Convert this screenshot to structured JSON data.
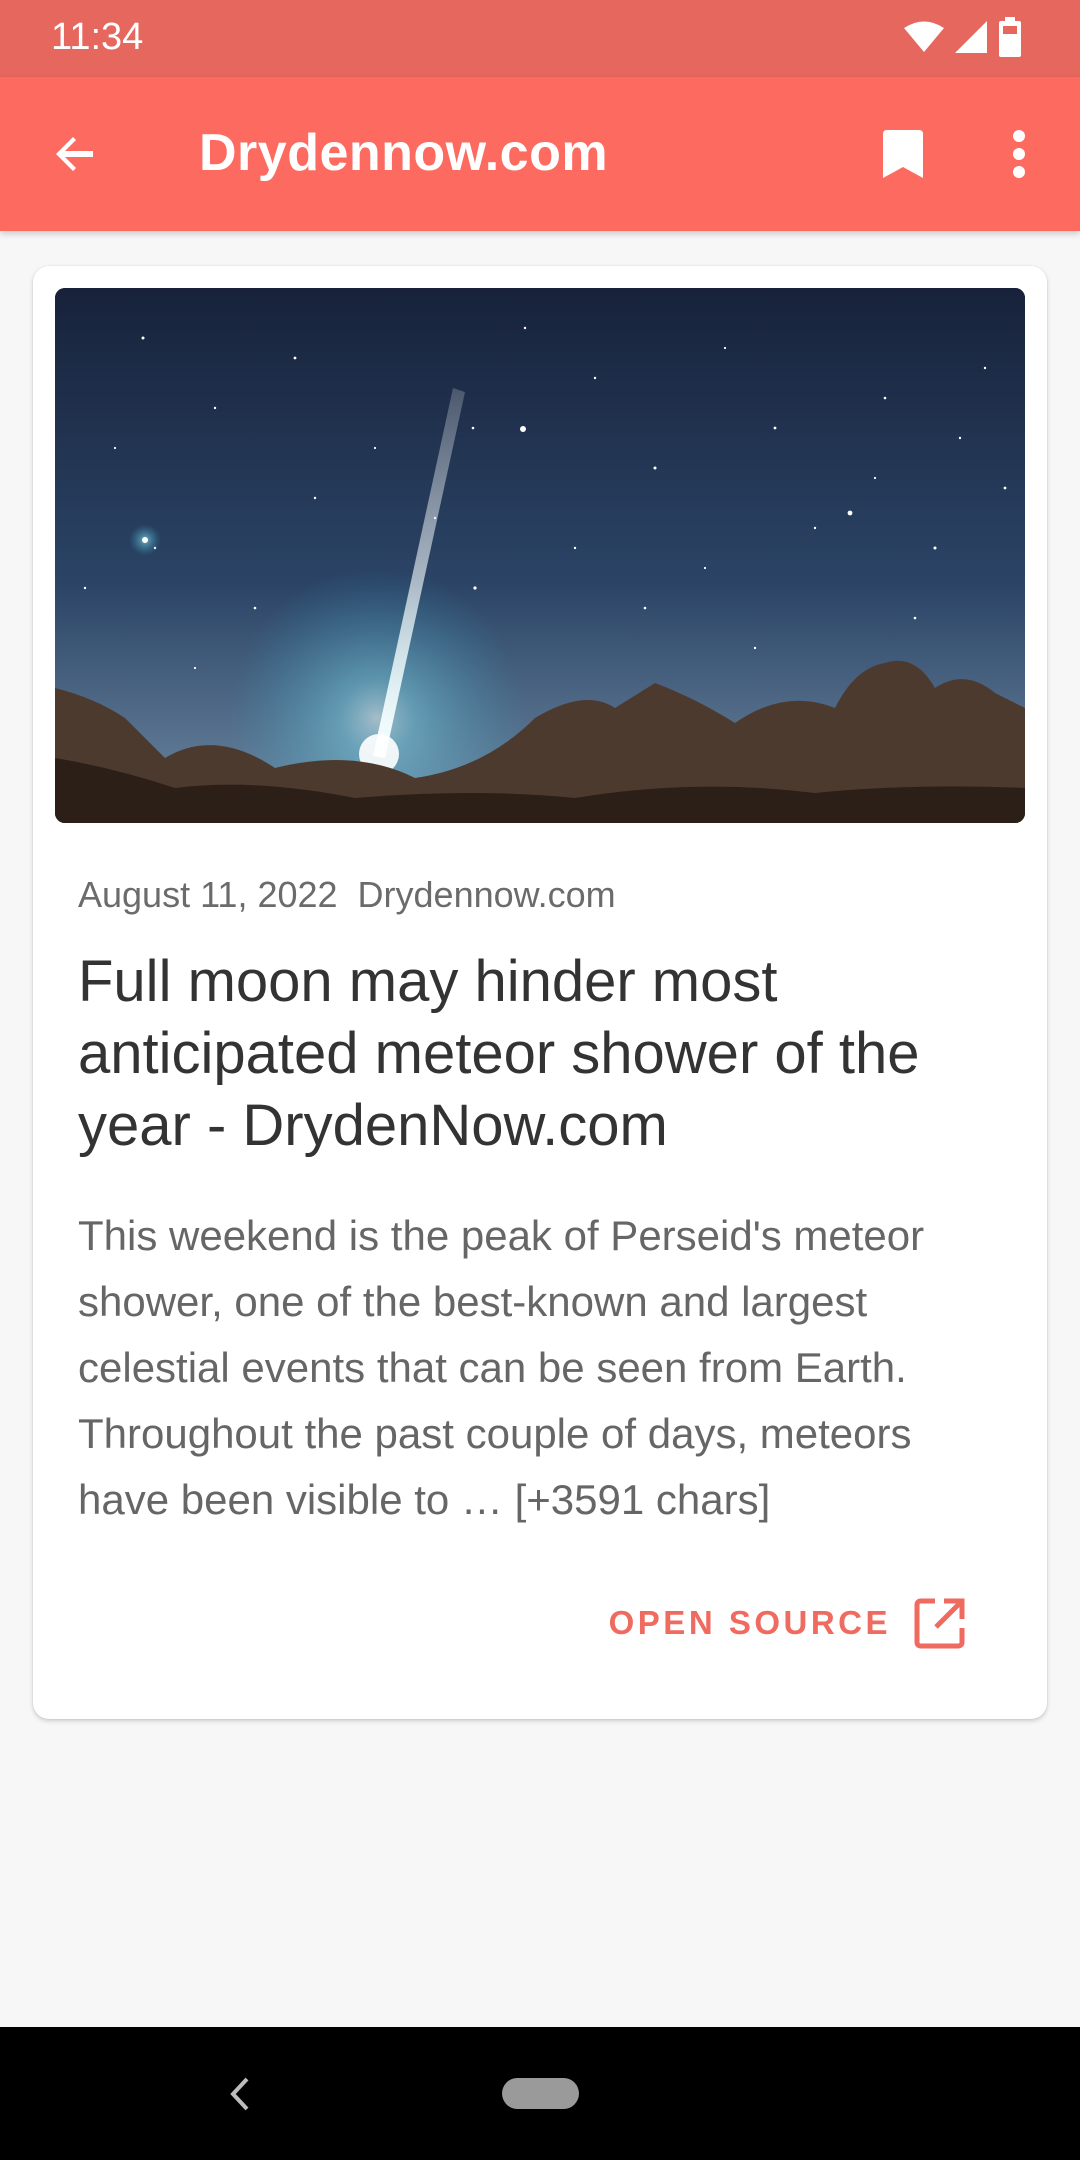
{
  "status_bar": {
    "time": "11:34",
    "icons": [
      "wifi-icon",
      "cell-signal-icon",
      "battery-icon"
    ]
  },
  "toolbar": {
    "title": "Drydennow.com",
    "icons": {
      "back": "arrow-left-icon",
      "bookmark": "bookmark-icon",
      "more": "more-vert-icon"
    }
  },
  "article": {
    "date": "August 11, 2022",
    "source": "Drydennow.com",
    "headline": "Full moon may hinder most anticipated meteor shower of the year - DrydenNow.com",
    "summary": "This weekend is the peak of Perseid's meteor shower, one of the best-known and largest celestial events that can be seen from Earth. Throughout the past couple of days, meteors have been visible to … [+3591 chars]",
    "open_source_label": "OPEN SOURCE",
    "open_source_icon": "open-in-new-icon"
  },
  "nav_bar": {
    "icons": [
      "nav-back-icon",
      "nav-home-pill"
    ]
  },
  "colors": {
    "status_bar": "#e5675d",
    "toolbar": "#fd6b60",
    "accent": "#ef6a5f",
    "background": "#f7f7f7"
  }
}
